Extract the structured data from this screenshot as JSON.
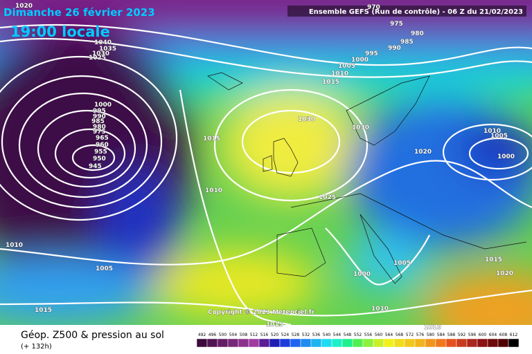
{
  "header": {
    "date": "Dimanche 26 février 2023",
    "time": "19:00 locale",
    "run": "Ensemble GEFS  (Run de contrôle)  -  06 Z du 21/02/2023"
  },
  "copyright": "Copyright © 2023 Meteociel.fr",
  "footer": {
    "title": "Géop. Z500 & pression au sol",
    "lead": "(+ 132h)"
  },
  "isobar_labels": [
    "1020",
    "970",
    "975",
    "980",
    "985",
    "990",
    "995",
    "1000",
    "1005",
    "1010",
    "1015",
    "1040",
    "1035",
    "1030",
    "1025",
    "1000",
    "995",
    "990",
    "985",
    "980",
    "975",
    "965",
    "960",
    "955",
    "950",
    "945",
    "1030",
    "1030",
    "1015",
    "1010",
    "1005",
    "1020",
    "1000",
    "1010",
    "1025",
    "1010",
    "1005",
    "1005",
    "1015",
    "1020",
    "1000",
    "1015",
    "1010",
    "1015",
    "1010"
  ],
  "colorbar": {
    "labels": [
      492,
      496,
      500,
      504,
      508,
      512,
      516,
      520,
      524,
      528,
      532,
      536,
      540,
      544,
      548,
      552,
      556,
      560,
      564,
      568,
      572,
      576,
      580,
      584,
      588,
      592,
      596,
      600,
      604,
      608,
      612
    ],
    "colors": [
      "#3c0a3c",
      "#501450",
      "#641e64",
      "#782878",
      "#8c328c",
      "#a03ca0",
      "#5a1e96",
      "#1e1eb4",
      "#1e3cdc",
      "#1e64f0",
      "#1e8cf0",
      "#1eb4f0",
      "#1edcf0",
      "#1ef0c8",
      "#1ef08c",
      "#50f050",
      "#8cf03c",
      "#c8f028",
      "#f0f01e",
      "#f0dc1e",
      "#f0c81e",
      "#f0b41e",
      "#f0961e",
      "#f0781e",
      "#e6501e",
      "#c83c1e",
      "#aa281e",
      "#8c1414",
      "#6e0a0a",
      "#500000",
      "#000000"
    ]
  }
}
